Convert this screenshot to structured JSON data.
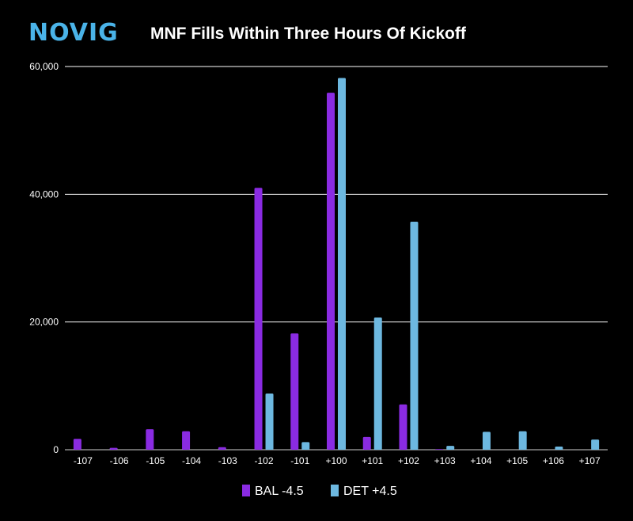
{
  "brand": {
    "logo_text": "NOVIG",
    "logo_color": "#4ab3e8"
  },
  "chart_data": {
    "type": "bar",
    "title": "MNF Fills Within Three Hours Of Kickoff",
    "xlabel": "",
    "ylabel": "",
    "categories": [
      "-107",
      "-106",
      "-105",
      "-104",
      "-103",
      "-102",
      "-101",
      "+100",
      "+101",
      "+102",
      "+103",
      "+104",
      "+105",
      "+106",
      "+107"
    ],
    "series": [
      {
        "name": "BAL -4.5",
        "color": "#8a2be2",
        "values": [
          1700,
          300,
          3200,
          2900,
          400,
          41000,
          18200,
          55900,
          2000,
          7100,
          100,
          0,
          0,
          0,
          0
        ]
      },
      {
        "name": "DET +4.5",
        "color": "#6db8e0",
        "values": [
          0,
          0,
          0,
          0,
          0,
          8800,
          1200,
          58200,
          20700,
          35700,
          600,
          2800,
          2900,
          500,
          1600
        ]
      }
    ],
    "ylim": [
      0,
      60000
    ],
    "yticks": [
      0,
      20000,
      40000,
      60000
    ],
    "ytick_labels": [
      "0",
      "20,000",
      "40,000",
      "60,000"
    ],
    "grid": true,
    "legend_position": "bottom-center",
    "background": "#000000",
    "text_color": "#ffffff"
  }
}
